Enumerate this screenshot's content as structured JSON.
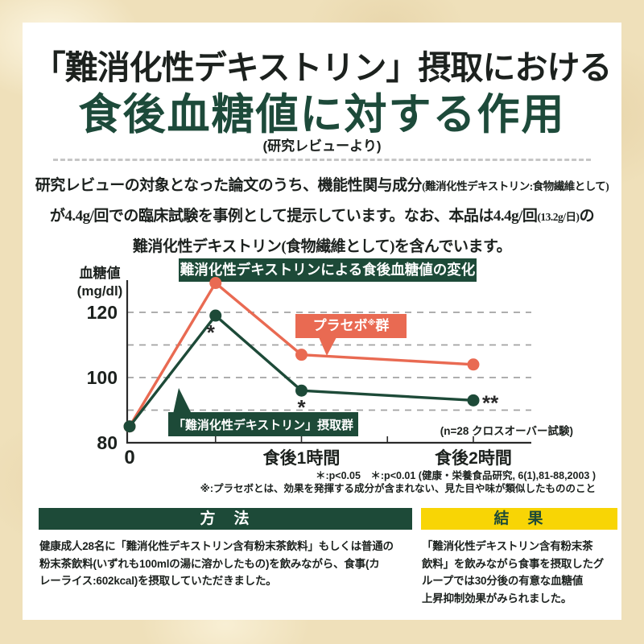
{
  "header": {
    "title_line1": "「難消化性デキストリン」摂取における",
    "title_line2": "食後血糖値に対する作用",
    "subtitle": "(研究レビューより)"
  },
  "intro": {
    "lines": [
      [
        {
          "text": "研究レビューの対象となった論文のうち、機能性関与成分",
          "small": false
        },
        {
          "text": "(難消化性デキストリン:食物繊維として)",
          "small": true
        }
      ],
      [
        {
          "text": "が4.4g/回での臨床試験を事例として提示しています。なお、本品は4.4g/回",
          "small": false
        },
        {
          "text": "(13.2g/日)",
          "small": true
        },
        {
          "text": "の",
          "small": false
        }
      ],
      [
        {
          "text": "難消化性デキストリン(食物繊維として)を含んでいます。",
          "small": false
        }
      ]
    ]
  },
  "chart": {
    "title": "難消化性デキストリンによる食後血糖値の変化",
    "ylabel_line1": "血糖値",
    "ylabel_line2": "(mg/dl)",
    "placebo_label_pre": "プラセボ",
    "placebo_label_ref": "※",
    "placebo_label_post": "群",
    "dextrin_label": "「難消化性デキストリン」摂取群",
    "sample_note": "(n=28 クロスオーバー試験)"
  },
  "chart_data": {
    "type": "line",
    "title": "難消化性デキストリンによる食後血糖値の変化",
    "ylabel": "血糖値 (mg/dl)",
    "ylim": [
      80,
      135
    ],
    "yticks_labeled": [
      80,
      100,
      120
    ],
    "gridlines_dashed": [
      90,
      100,
      110,
      120
    ],
    "x_minutes": [
      0,
      30,
      60,
      120
    ],
    "x_axis_ticks_minutes": [
      30,
      60,
      90,
      120
    ],
    "x_tick_labels": [
      {
        "minute": 0,
        "label": "0"
      },
      {
        "minute": 60,
        "label": "食後1時間"
      },
      {
        "minute": 120,
        "label": "食後2時間"
      }
    ],
    "series": [
      {
        "name": "プラセボ※群",
        "color": "#e96a52",
        "values": [
          85,
          129,
          107,
          104
        ]
      },
      {
        "name": "「難消化性デキストリン」摂取群",
        "color": "#1d4a38",
        "values": [
          85,
          119,
          96,
          93
        ]
      }
    ],
    "significance_marks": [
      {
        "minute": 30,
        "series": "「難消化性デキストリン」摂取群",
        "mark": "*"
      },
      {
        "minute": 60,
        "series": "「難消化性デキストリン」摂取群",
        "mark": "*"
      },
      {
        "minute": 120,
        "series": "「難消化性デキストリン」摂取群",
        "mark": "**"
      }
    ],
    "sample_note": "(n=28 クロスオーバー試験)",
    "legend_position": "callouts-on-plot",
    "grid": "horizontal-dashed"
  },
  "footnotes": {
    "line1": "＊:p<0.05　＊:p<0.01 (健康・栄養食品研究, 6(1),81-88,2003 )",
    "line2": "※:プラセボとは、効果を発揮する成分が含まれない、見た目や味が類似したもののこと"
  },
  "method": {
    "header": "方　法",
    "lines": [
      "健康成人28名に「難消化性デキストリン含有粉末茶飲料」もしくは普通の",
      "粉末茶飲料(いずれも100mlの湯に溶かしたもの)を飲みながら、食事(カ",
      "レーライス:602kcal)を摂取していただきました。"
    ]
  },
  "result": {
    "header": "結　果",
    "lines": [
      "「難消化性デキストリン含有粉末茶",
      "飲料」を飲みながら食事を摂取したグ",
      "ループでは30分後の有意な血糖値",
      "上昇抑制効果がみられました。"
    ]
  },
  "colors": {
    "dark_green": "#1d4a38",
    "red": "#e96a52",
    "yellow": "#f8d505",
    "text": "#1c211e",
    "grid": "#a3a3a3",
    "axis": "#2a2a2a",
    "background": "#efe0ba",
    "panel": "#ffffff"
  }
}
